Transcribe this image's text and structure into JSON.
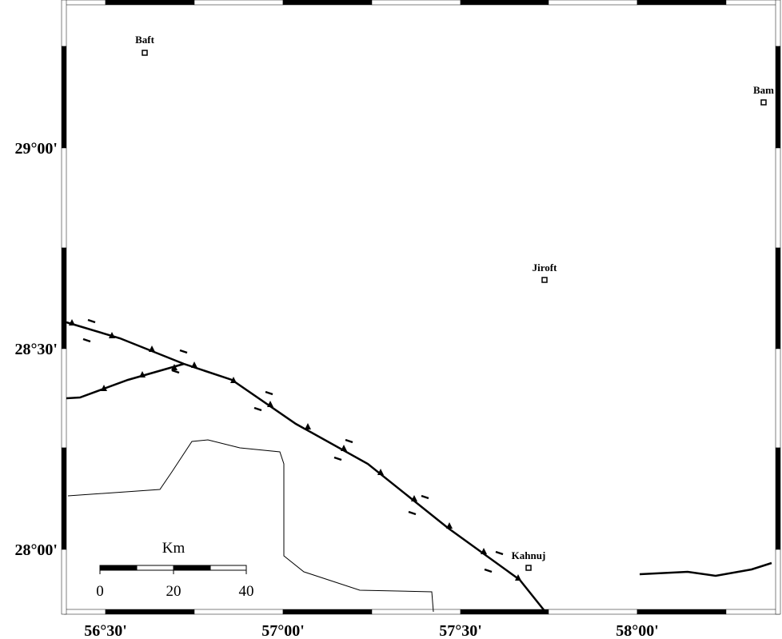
{
  "map": {
    "cities": [
      {
        "label": "Baft"
      },
      {
        "label": "Bam"
      },
      {
        "label": "Jiroft"
      },
      {
        "label": "Kahnuj"
      }
    ],
    "lat_ticks": [
      "29°00'",
      "28°30'",
      "28°00'"
    ],
    "lon_ticks": [
      "56°30'",
      "57°00'",
      "57°30'",
      "58°00'"
    ],
    "scale_bar": {
      "unit": "Km",
      "ticks": [
        "0",
        "20",
        "40"
      ]
    }
  }
}
